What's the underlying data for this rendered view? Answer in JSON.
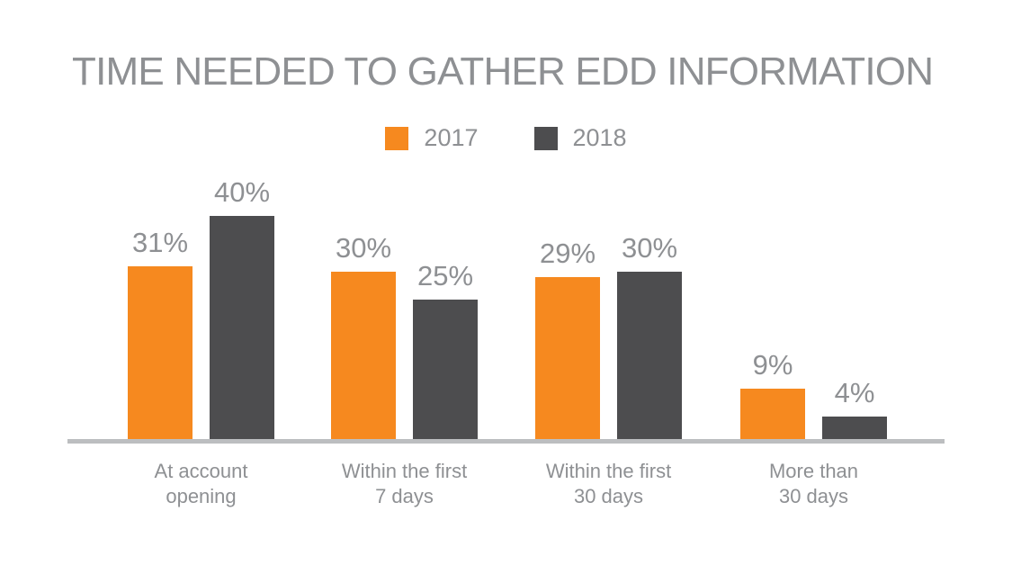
{
  "title": "TIME NEEDED TO GATHER EDD INFORMATION",
  "legend": {
    "items": [
      {
        "label": "2017",
        "color": "#F6891F"
      },
      {
        "label": "2018",
        "color": "#4D4D4F"
      }
    ]
  },
  "chart_data": {
    "type": "bar",
    "title": "TIME NEEDED TO GATHER EDD INFORMATION",
    "categories": [
      "At account\nopening",
      "Within the first\n7 days",
      "Within the first\n30 days",
      "More than\n30 days"
    ],
    "series": [
      {
        "name": "2017",
        "color": "#F6891F",
        "values": [
          31,
          30,
          29,
          9
        ]
      },
      {
        "name": "2018",
        "color": "#4D4D4F",
        "values": [
          40,
          25,
          30,
          4
        ]
      }
    ],
    "unit": "%",
    "data_labels": {
      "2017": [
        "31%",
        "30%",
        "29%",
        "9%"
      ],
      "2018": [
        "40%",
        "25%",
        "30%",
        "4%"
      ]
    },
    "ylim": [
      0,
      45
    ],
    "grid": false,
    "legend_position": "top-center",
    "axis_line_color": "#BCBEC0",
    "label_color": "#8E9093",
    "title_color": "#8E9093",
    "background": "#FFFFFF"
  }
}
